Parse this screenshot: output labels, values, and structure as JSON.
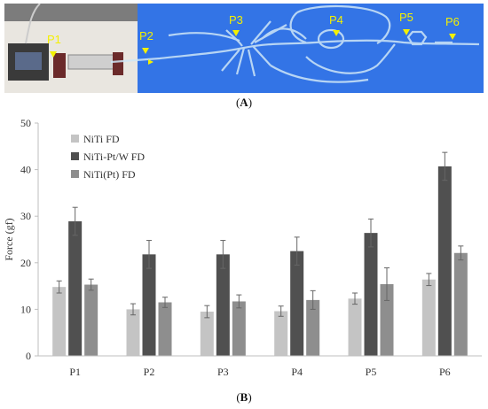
{
  "panel_a": {
    "caption_letter": "A",
    "position_labels": [
      "P1",
      "P2",
      "P3",
      "P4",
      "P5",
      "P6"
    ],
    "colors": {
      "background": "#2f6fe0",
      "label": "#f4f000",
      "model": "#cfe6f7",
      "apparatus": "#8a8a8a"
    }
  },
  "panel_b": {
    "caption_letter": "B"
  },
  "chart_data": {
    "type": "bar",
    "categories": [
      "P1",
      "P2",
      "P3",
      "P4",
      "P5",
      "P6"
    ],
    "series": [
      {
        "name": "NiTi FD",
        "color": "#c4c4c4",
        "values": [
          14.8,
          10.0,
          9.5,
          9.6,
          12.3,
          16.4
        ],
        "errors": [
          1.3,
          1.2,
          1.3,
          1.1,
          1.2,
          1.3
        ]
      },
      {
        "name": "NiTi-Pt/W FD",
        "color": "#505050",
        "values": [
          28.9,
          21.8,
          21.8,
          22.5,
          26.4,
          40.7
        ],
        "errors": [
          3.0,
          3.0,
          3.0,
          3.0,
          3.0,
          3.0
        ]
      },
      {
        "name": "NiTi(Pt) FD",
        "color": "#8e8e8e",
        "values": [
          15.3,
          11.5,
          11.7,
          12.0,
          15.4,
          22.1
        ],
        "errors": [
          1.2,
          1.1,
          1.4,
          2.0,
          3.5,
          1.5
        ]
      }
    ],
    "ylabel": "Force (gf)",
    "ylim": [
      0,
      50
    ],
    "yticks": [
      0,
      10,
      20,
      30,
      40,
      50
    ],
    "error_bars": true,
    "grid": false,
    "legend_position": "top-left"
  }
}
